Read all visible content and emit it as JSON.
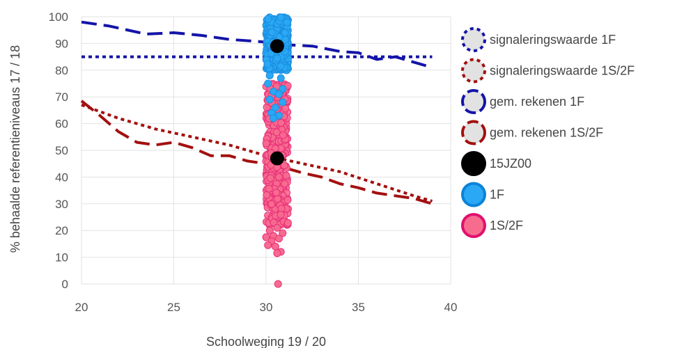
{
  "chart_data": {
    "type": "scatter",
    "xlabel": "Schoolweging 19 / 20",
    "ylabel": "% behaalde referentieniveaus 17 / 18",
    "xlim": [
      20,
      40
    ],
    "ylim": [
      0,
      100
    ],
    "xticks": [
      "20",
      "25",
      "30",
      "35",
      "40"
    ],
    "yticks": [
      "0",
      "10",
      "20",
      "30",
      "40",
      "50",
      "60",
      "70",
      "80",
      "90",
      "100"
    ],
    "grid": true,
    "legend_position": "right",
    "colors": {
      "blue_line": "#1414a8",
      "red_line": "#a31010",
      "school": "#000000",
      "f1_fill": "#2aa8f5",
      "f1_edge": "#1a8ee0",
      "s2f_fill": "#f76b8f",
      "s2f_edge": "#e8307a",
      "grid": "#e2e2e2",
      "legend_fill": "#e2e2e2"
    },
    "series": [
      {
        "name": "signaleringswaarde 1F",
        "style": "dotted",
        "color": "#1414a8",
        "points": [
          [
            20,
            85
          ],
          [
            39,
            85
          ]
        ]
      },
      {
        "name": "signaleringswaarde 1S/2F",
        "style": "dotted",
        "color": "#a31010",
        "points": [
          [
            20,
            67
          ],
          [
            22,
            62
          ],
          [
            24,
            58
          ],
          [
            26,
            55
          ],
          [
            28,
            52
          ],
          [
            30,
            48
          ],
          [
            32,
            45
          ],
          [
            34,
            42
          ],
          [
            36,
            37.5
          ],
          [
            38,
            33
          ],
          [
            39,
            31
          ]
        ]
      },
      {
        "name": "gem. rekenen 1F",
        "style": "dashed",
        "color": "#1414a8",
        "points": [
          [
            20,
            98
          ],
          [
            21.5,
            96.5
          ],
          [
            23.5,
            93.5
          ],
          [
            25,
            94
          ],
          [
            26.5,
            93
          ],
          [
            28,
            91.5
          ],
          [
            30,
            90.5
          ],
          [
            31,
            89.5
          ],
          [
            32.5,
            89
          ],
          [
            34,
            87
          ],
          [
            35,
            86.5
          ],
          [
            36,
            84
          ],
          [
            37,
            85
          ],
          [
            38,
            83
          ],
          [
            39,
            81
          ]
        ]
      },
      {
        "name": "gem. rekenen 1S/2F",
        "style": "dashed",
        "color": "#a31010",
        "points": [
          [
            20,
            68.5
          ],
          [
            21,
            63
          ],
          [
            22,
            57
          ],
          [
            23,
            53
          ],
          [
            24,
            52
          ],
          [
            25,
            53
          ],
          [
            26,
            51
          ],
          [
            27,
            48
          ],
          [
            28,
            48
          ],
          [
            29,
            46
          ],
          [
            30,
            45
          ],
          [
            31,
            43.5
          ],
          [
            32,
            41.5
          ],
          [
            33,
            40
          ],
          [
            34,
            37.5
          ],
          [
            35,
            36
          ],
          [
            36,
            34
          ],
          [
            37,
            33
          ],
          [
            38,
            32
          ],
          [
            39,
            30
          ]
        ]
      },
      {
        "name": "15JZ00",
        "marker": "circle",
        "color": "#000000",
        "points": [
          [
            30.6,
            89
          ],
          [
            30.6,
            47
          ]
        ]
      },
      {
        "name": "1F",
        "marker": "circle",
        "color": "#2aa8f5",
        "x_range": [
          30.0,
          31.2
        ],
        "y_range": [
          62,
          100
        ],
        "cloud_range": [
          80,
          100
        ],
        "outliers": [
          [
            30.2,
            78
          ],
          [
            30.8,
            77
          ],
          [
            30.1,
            75
          ],
          [
            30.9,
            73
          ],
          [
            30.4,
            72
          ],
          [
            30.7,
            71
          ],
          [
            30.2,
            69
          ],
          [
            30.9,
            68
          ],
          [
            30.5,
            66
          ],
          [
            30.3,
            64
          ],
          [
            30.7,
            63
          ],
          [
            30.4,
            62
          ]
        ]
      },
      {
        "name": "1S/2F",
        "marker": "circle",
        "color": "#f76b8f",
        "x_range": [
          30.0,
          31.2
        ],
        "y_range": [
          0,
          75
        ],
        "cloud_range": [
          22,
          75
        ],
        "outliers": [
          [
            30.6,
            21
          ],
          [
            30.2,
            20
          ],
          [
            30.9,
            19
          ],
          [
            30.4,
            18
          ],
          [
            30.0,
            17.5
          ],
          [
            30.7,
            17
          ],
          [
            30.3,
            16
          ],
          [
            30.1,
            14.5
          ],
          [
            30.5,
            14
          ],
          [
            30.8,
            12
          ],
          [
            30.6,
            11.5
          ],
          [
            30.65,
            0
          ]
        ]
      }
    ]
  }
}
